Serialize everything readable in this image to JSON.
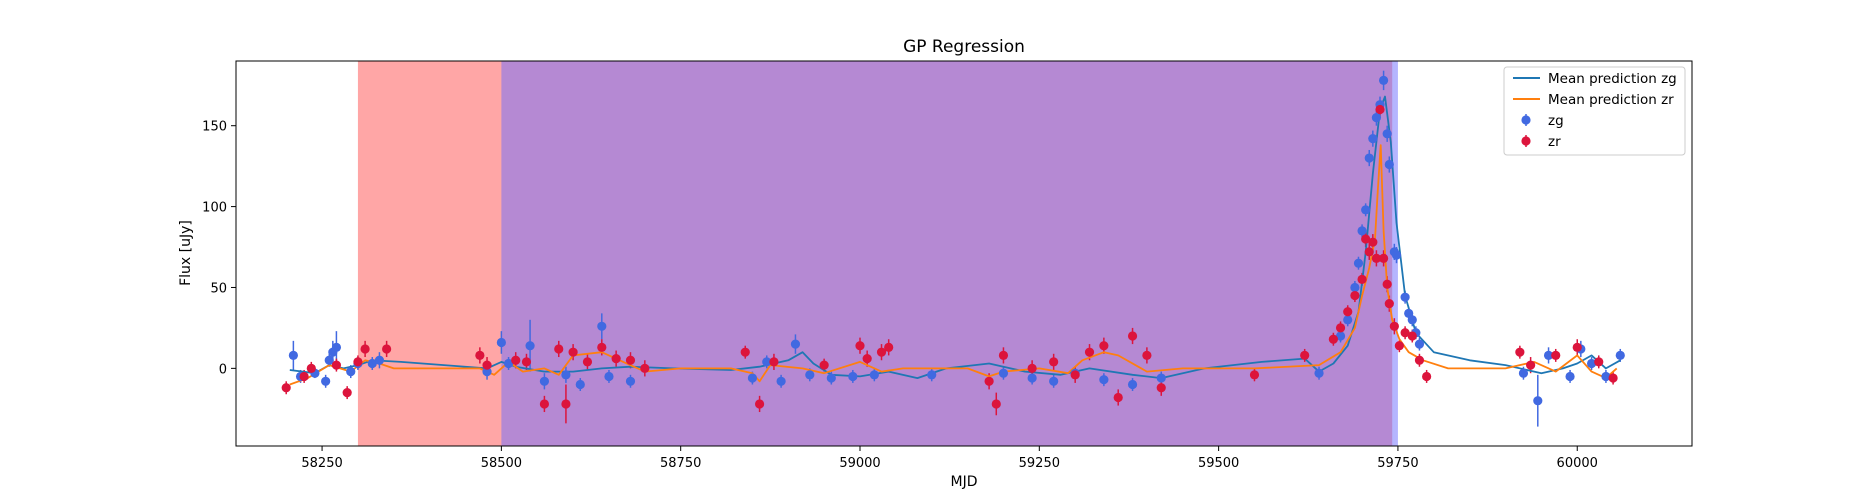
{
  "chart_data": {
    "type": "scatter",
    "title": "GP Regression",
    "xlabel": "MJD",
    "ylabel": "Flux [uJy]",
    "xlim": [
      58130,
      60160
    ],
    "ylim": [
      -48,
      190
    ],
    "xticks": [
      58250,
      58500,
      58750,
      59000,
      59250,
      59500,
      59750,
      60000
    ],
    "yticks": [
      0,
      50,
      100,
      150
    ],
    "grid": false,
    "legend_position": "top-right",
    "shaded_regions": [
      {
        "x0": 58300,
        "x1": 59742,
        "color": "#ff6b6b",
        "opacity": 0.6
      },
      {
        "x0": 58500,
        "x1": 59750,
        "color": "#6b6bff",
        "opacity": 0.5
      }
    ],
    "mean_predictions": [
      {
        "name": "Mean prediction zg",
        "color": "#1f77b4",
        "points": [
          [
            58205,
            -1
          ],
          [
            58240,
            -3
          ],
          [
            58260,
            2
          ],
          [
            58280,
            0
          ],
          [
            58300,
            2
          ],
          [
            58320,
            5
          ],
          [
            58360,
            4
          ],
          [
            58420,
            2
          ],
          [
            58480,
            0
          ],
          [
            58500,
            4
          ],
          [
            58520,
            1
          ],
          [
            58560,
            -2
          ],
          [
            58600,
            -2
          ],
          [
            58640,
            0
          ],
          [
            58680,
            1
          ],
          [
            58740,
            0
          ],
          [
            58820,
            -1
          ],
          [
            58860,
            1
          ],
          [
            58900,
            5
          ],
          [
            58920,
            10
          ],
          [
            58935,
            3
          ],
          [
            58960,
            -4
          ],
          [
            59000,
            -5
          ],
          [
            59040,
            -2
          ],
          [
            59080,
            -6
          ],
          [
            59120,
            0
          ],
          [
            59180,
            3
          ],
          [
            59230,
            -2
          ],
          [
            59280,
            -4
          ],
          [
            59320,
            0
          ],
          [
            59380,
            -4
          ],
          [
            59420,
            -6
          ],
          [
            59480,
            0
          ],
          [
            59560,
            4
          ],
          [
            59620,
            6
          ],
          [
            59640,
            -2
          ],
          [
            59660,
            3
          ],
          [
            59680,
            14
          ],
          [
            59695,
            35
          ],
          [
            59705,
            72
          ],
          [
            59715,
            120
          ],
          [
            59725,
            160
          ],
          [
            59732,
            168
          ],
          [
            59740,
            140
          ],
          [
            59748,
            90
          ],
          [
            59760,
            45
          ],
          [
            59775,
            22
          ],
          [
            59800,
            10
          ],
          [
            59850,
            5
          ],
          [
            59900,
            2
          ],
          [
            59950,
            -3
          ],
          [
            59980,
            0
          ],
          [
            60000,
            3
          ],
          [
            60020,
            8
          ],
          [
            60040,
            0
          ],
          [
            60060,
            5
          ]
        ]
      },
      {
        "name": "Mean prediction zr",
        "color": "#ff7f0e",
        "points": [
          [
            58205,
            -10
          ],
          [
            58230,
            -6
          ],
          [
            58260,
            2
          ],
          [
            58290,
            -2
          ],
          [
            58310,
            5
          ],
          [
            58330,
            3
          ],
          [
            58350,
            0
          ],
          [
            58420,
            0
          ],
          [
            58470,
            0
          ],
          [
            58490,
            -4
          ],
          [
            58510,
            4
          ],
          [
            58530,
            -2
          ],
          [
            58560,
            0
          ],
          [
            58580,
            -4
          ],
          [
            58600,
            8
          ],
          [
            58640,
            10
          ],
          [
            58670,
            4
          ],
          [
            58700,
            -2
          ],
          [
            58750,
            0
          ],
          [
            58820,
            0
          ],
          [
            58850,
            -3
          ],
          [
            58860,
            -8
          ],
          [
            58875,
            2
          ],
          [
            58920,
            0
          ],
          [
            58950,
            -3
          ],
          [
            59000,
            4
          ],
          [
            59030,
            -2
          ],
          [
            59060,
            0
          ],
          [
            59150,
            0
          ],
          [
            59180,
            -5
          ],
          [
            59200,
            -2
          ],
          [
            59250,
            0
          ],
          [
            59290,
            -3
          ],
          [
            59310,
            5
          ],
          [
            59340,
            10
          ],
          [
            59360,
            8
          ],
          [
            59400,
            -2
          ],
          [
            59450,
            0
          ],
          [
            59550,
            0
          ],
          [
            59640,
            2
          ],
          [
            59670,
            10
          ],
          [
            59690,
            25
          ],
          [
            59700,
            45
          ],
          [
            59710,
            62
          ],
          [
            59718,
            80
          ],
          [
            59722,
            110
          ],
          [
            59726,
            138
          ],
          [
            59730,
            85
          ],
          [
            59735,
            50
          ],
          [
            59742,
            30
          ],
          [
            59752,
            18
          ],
          [
            59765,
            10
          ],
          [
            59785,
            5
          ],
          [
            59820,
            0
          ],
          [
            59900,
            0
          ],
          [
            59940,
            4
          ],
          [
            59970,
            -2
          ],
          [
            60000,
            8
          ],
          [
            60020,
            -2
          ],
          [
            60040,
            -6
          ],
          [
            60055,
            0
          ]
        ]
      }
    ],
    "series": [
      {
        "name": "zg",
        "color": "#4169e1",
        "points": [
          [
            58210,
            8,
            9
          ],
          [
            58220,
            -5,
            4
          ],
          [
            58240,
            -3,
            3
          ],
          [
            58255,
            -8,
            4
          ],
          [
            58260,
            5,
            4
          ],
          [
            58265,
            10,
            7
          ],
          [
            58270,
            13,
            10
          ],
          [
            58290,
            -2,
            4
          ],
          [
            58300,
            3,
            4
          ],
          [
            58320,
            3,
            4
          ],
          [
            58330,
            5,
            5
          ],
          [
            58480,
            -2,
            5
          ],
          [
            58500,
            16,
            7
          ],
          [
            58510,
            3,
            4
          ],
          [
            58540,
            14,
            16
          ],
          [
            58560,
            -8,
            5
          ],
          [
            58590,
            -4,
            5
          ],
          [
            58610,
            -10,
            4
          ],
          [
            58640,
            26,
            8
          ],
          [
            58650,
            -5,
            4
          ],
          [
            58680,
            -8,
            4
          ],
          [
            58850,
            -6,
            4
          ],
          [
            58870,
            4,
            4
          ],
          [
            58890,
            -8,
            4
          ],
          [
            58910,
            15,
            6
          ],
          [
            58930,
            -4,
            4
          ],
          [
            58960,
            -6,
            4
          ],
          [
            58990,
            -5,
            4
          ],
          [
            59020,
            -4,
            4
          ],
          [
            59100,
            -4,
            4
          ],
          [
            59200,
            -3,
            4
          ],
          [
            59240,
            -6,
            4
          ],
          [
            59270,
            -8,
            4
          ],
          [
            59300,
            -3,
            4
          ],
          [
            59340,
            -7,
            4
          ],
          [
            59380,
            -10,
            4
          ],
          [
            59420,
            -6,
            4
          ],
          [
            59640,
            -3,
            4
          ],
          [
            59670,
            20,
            4
          ],
          [
            59680,
            30,
            4
          ],
          [
            59690,
            50,
            4
          ],
          [
            59695,
            65,
            4
          ],
          [
            59700,
            85,
            4
          ],
          [
            59705,
            98,
            4
          ],
          [
            59710,
            130,
            5
          ],
          [
            59715,
            142,
            5
          ],
          [
            59720,
            155,
            5
          ],
          [
            59725,
            163,
            5
          ],
          [
            59730,
            178,
            6
          ],
          [
            59735,
            145,
            5
          ],
          [
            59738,
            126,
            5
          ],
          [
            59745,
            72,
            5
          ],
          [
            59748,
            70,
            5
          ],
          [
            59760,
            44,
            4
          ],
          [
            59765,
            34,
            4
          ],
          [
            59770,
            30,
            4
          ],
          [
            59775,
            22,
            4
          ],
          [
            59780,
            15,
            4
          ],
          [
            59925,
            -3,
            4
          ],
          [
            59945,
            -20,
            16
          ],
          [
            59960,
            8,
            5
          ],
          [
            59990,
            -5,
            4
          ],
          [
            60005,
            12,
            5
          ],
          [
            60020,
            3,
            4
          ],
          [
            60040,
            -5,
            4
          ],
          [
            60060,
            8,
            4
          ]
        ]
      },
      {
        "name": "zr",
        "color": "#dc143c",
        "points": [
          [
            58200,
            -12,
            4
          ],
          [
            58225,
            -5,
            4
          ],
          [
            58235,
            0,
            4
          ],
          [
            58270,
            2,
            4
          ],
          [
            58285,
            -15,
            4
          ],
          [
            58300,
            4,
            4
          ],
          [
            58310,
            12,
            5
          ],
          [
            58340,
            12,
            5
          ],
          [
            58470,
            8,
            5
          ],
          [
            58480,
            2,
            5
          ],
          [
            58520,
            5,
            5
          ],
          [
            58535,
            4,
            5
          ],
          [
            58560,
            -22,
            5
          ],
          [
            58580,
            12,
            5
          ],
          [
            58590,
            -22,
            12
          ],
          [
            58600,
            10,
            5
          ],
          [
            58620,
            4,
            5
          ],
          [
            58640,
            13,
            5
          ],
          [
            58660,
            6,
            5
          ],
          [
            58680,
            5,
            5
          ],
          [
            58700,
            0,
            5
          ],
          [
            58840,
            10,
            4
          ],
          [
            58860,
            -22,
            5
          ],
          [
            58880,
            4,
            5
          ],
          [
            58950,
            2,
            4
          ],
          [
            59000,
            14,
            5
          ],
          [
            59010,
            6,
            5
          ],
          [
            59030,
            10,
            5
          ],
          [
            59040,
            13,
            5
          ],
          [
            59180,
            -8,
            5
          ],
          [
            59190,
            -22,
            7
          ],
          [
            59200,
            8,
            5
          ],
          [
            59240,
            0,
            5
          ],
          [
            59270,
            4,
            5
          ],
          [
            59300,
            -4,
            5
          ],
          [
            59320,
            10,
            5
          ],
          [
            59340,
            14,
            5
          ],
          [
            59360,
            -18,
            5
          ],
          [
            59380,
            20,
            5
          ],
          [
            59400,
            8,
            5
          ],
          [
            59420,
            -12,
            5
          ],
          [
            59550,
            -4,
            4
          ],
          [
            59620,
            8,
            4
          ],
          [
            59660,
            18,
            4
          ],
          [
            59670,
            25,
            4
          ],
          [
            59680,
            35,
            4
          ],
          [
            59690,
            45,
            4
          ],
          [
            59700,
            55,
            4
          ],
          [
            59705,
            80,
            5
          ],
          [
            59710,
            72,
            5
          ],
          [
            59715,
            78,
            5
          ],
          [
            59720,
            68,
            5
          ],
          [
            59725,
            160,
            5
          ],
          [
            59730,
            68,
            5
          ],
          [
            59735,
            52,
            5
          ],
          [
            59738,
            40,
            5
          ],
          [
            59745,
            26,
            5
          ],
          [
            59752,
            14,
            4
          ],
          [
            59760,
            22,
            4
          ],
          [
            59770,
            20,
            4
          ],
          [
            59780,
            5,
            4
          ],
          [
            59790,
            -5,
            4
          ],
          [
            59920,
            10,
            4
          ],
          [
            59935,
            2,
            5
          ],
          [
            59970,
            8,
            4
          ],
          [
            60000,
            13,
            5
          ],
          [
            60030,
            4,
            4
          ],
          [
            60050,
            -6,
            4
          ]
        ]
      }
    ]
  }
}
